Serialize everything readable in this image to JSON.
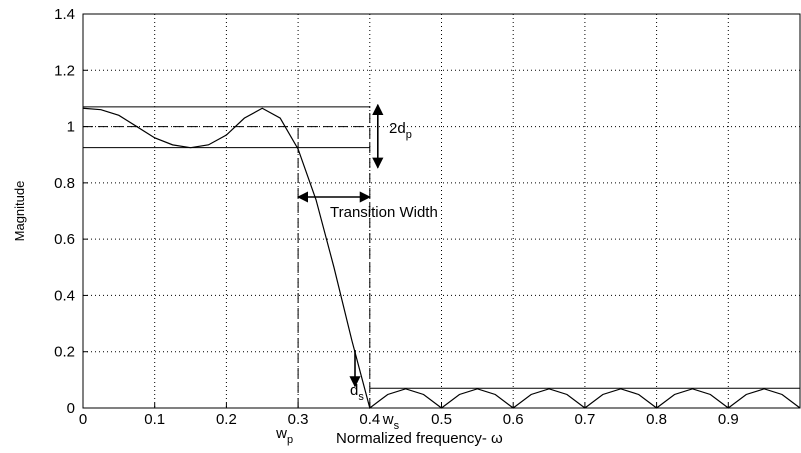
{
  "chart_data": {
    "type": "line",
    "xlabel": "Normalized frequency- ω",
    "ylabel": "Magnitude",
    "x": [
      0,
      0.025,
      0.05,
      0.075,
      0.1,
      0.125,
      0.15,
      0.175,
      0.2,
      0.225,
      0.25,
      0.275,
      0.3,
      0.325,
      0.35,
      0.375,
      0.4,
      0.425,
      0.45,
      0.475,
      0.5,
      0.525,
      0.55,
      0.575,
      0.6,
      0.625,
      0.65,
      0.675,
      0.7,
      0.725,
      0.75,
      0.775,
      0.8,
      0.825,
      0.85,
      0.875,
      0.9,
      0.925,
      0.95,
      0.975,
      1.0
    ],
    "values": [
      1.065,
      1.06,
      1.04,
      1.0,
      0.96,
      0.935,
      0.925,
      0.935,
      0.97,
      1.03,
      1.065,
      1.03,
      0.92,
      0.74,
      0.5,
      0.24,
      0,
      0.048,
      0.068,
      0.048,
      0,
      0.048,
      0.068,
      0.048,
      0,
      0.048,
      0.068,
      0.048,
      0,
      0.048,
      0.068,
      0.048,
      0,
      0.048,
      0.068,
      0.048,
      0,
      0.048,
      0.068,
      0.048,
      0
    ],
    "color": "#000000",
    "xlim": [
      0,
      1
    ],
    "ylim": [
      0,
      1.4
    ],
    "xticks": [
      0,
      0.1,
      0.2,
      0.3,
      0.4,
      0.5,
      0.6,
      0.7,
      0.8,
      0.9
    ],
    "yticks": [
      0,
      0.2,
      0.4,
      0.6,
      0.8,
      1,
      1.2,
      1.4
    ],
    "grid": true,
    "passband_upper": 1.07,
    "passband_nominal": 1,
    "passband_lower": 0.925,
    "stopband_level": 0.07,
    "passband_edge": 0.3,
    "stopband_edge": 0.4,
    "annotations": {
      "ripple": {
        "text": "2d",
        "subscript": "p"
      },
      "transition": {
        "text": "Transition Width"
      },
      "stopband": {
        "text": "d",
        "subscript": "s"
      },
      "wp": {
        "text": "w",
        "subscript": "p"
      },
      "ws": {
        "text": "w",
        "subscript": "s"
      }
    }
  }
}
